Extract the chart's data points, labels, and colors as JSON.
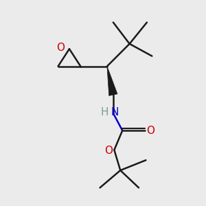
{
  "bg_color": "#ebebeb",
  "bond_color": "#1a1a1a",
  "oxygen_color": "#cc0000",
  "nitrogen_color": "#0000cc",
  "hydrogen_color": "#7a9a9a",
  "line_width": 1.8,
  "fig_width": 3.0,
  "fig_height": 3.0,
  "dpi": 100,
  "xlim": [
    0,
    10
  ],
  "ylim": [
    0,
    10
  ]
}
